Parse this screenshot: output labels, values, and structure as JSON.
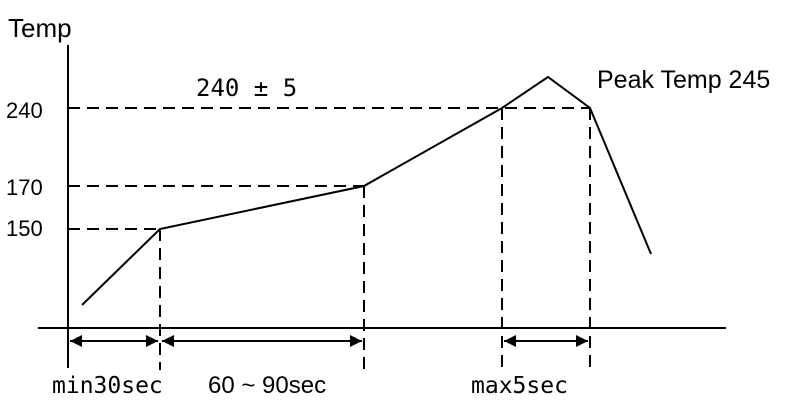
{
  "diagram": {
    "y_axis_label": "Temp",
    "y_ticks": [
      "240",
      "170",
      "150"
    ],
    "band_label": "240 ± 5",
    "peak_label": "Peak Temp 245",
    "interval_labels": [
      "min30sec",
      "60 ~ 90sec",
      "max5sec"
    ]
  }
}
